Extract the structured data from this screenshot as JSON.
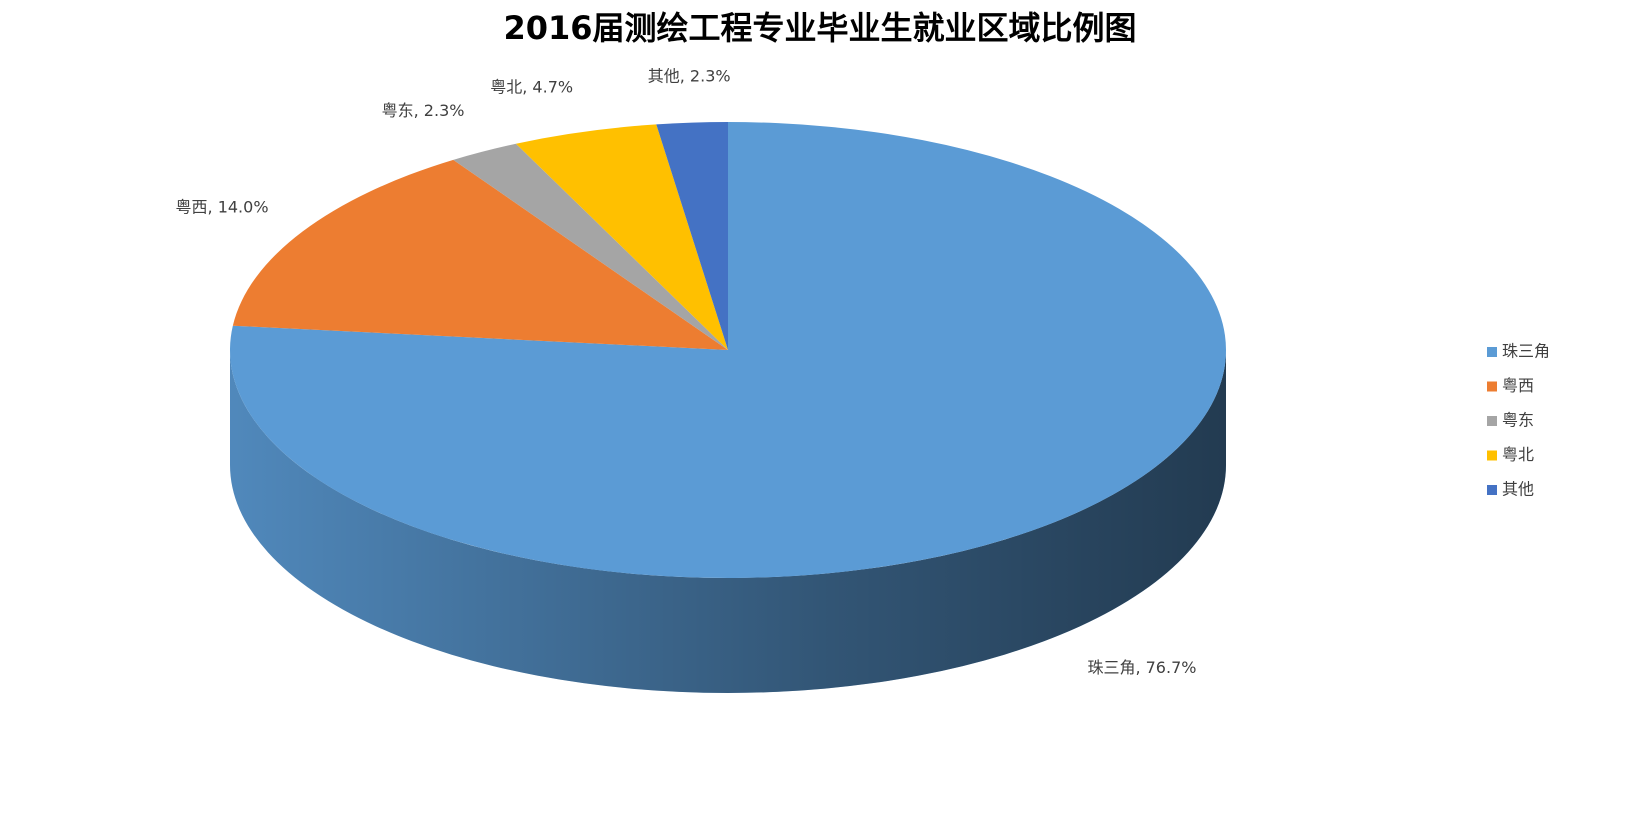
{
  "chart_data": {
    "type": "pie",
    "title": "2016届测绘工程专业毕业生就业区域比例图",
    "categories": [
      "珠三角",
      "粤西",
      "粤东",
      "粤北",
      "其他"
    ],
    "values": [
      76.7,
      14.0,
      2.3,
      4.7,
      2.3
    ],
    "value_labels": [
      "珠三角, 76.7%",
      "粤西, 14.0%",
      "粤东, 2.3%",
      "粤北, 4.7%",
      "其他, 2.3%"
    ],
    "colors": [
      "#5b9bd5",
      "#ed7d31",
      "#a5a5a5",
      "#ffc000",
      "#4472c4"
    ],
    "legend": "right"
  }
}
